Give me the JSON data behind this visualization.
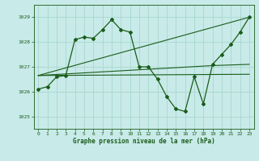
{
  "background_color": "#c8eae8",
  "grid_color": "#a8d8d0",
  "line_color": "#1a5c1a",
  "title": "Graphe pression niveau de la mer (hPa)",
  "xlim": [
    -0.5,
    23.5
  ],
  "ylim": [
    1024.5,
    1029.5
  ],
  "yticks": [
    1025,
    1026,
    1027,
    1028,
    1029
  ],
  "xticks": [
    0,
    1,
    2,
    3,
    4,
    5,
    6,
    7,
    8,
    9,
    10,
    11,
    12,
    13,
    14,
    15,
    16,
    17,
    18,
    19,
    20,
    21,
    22,
    23
  ],
  "series1_x": [
    0,
    1,
    2,
    3,
    4,
    5,
    6,
    7,
    8,
    9,
    10,
    11,
    12,
    13,
    14,
    15,
    16,
    17,
    18,
    19,
    20,
    21,
    22,
    23
  ],
  "series1_y": [
    1026.1,
    1026.2,
    1026.6,
    1026.65,
    1028.1,
    1028.2,
    1028.15,
    1028.5,
    1028.9,
    1028.5,
    1028.4,
    1027.0,
    1027.0,
    1026.5,
    1025.8,
    1025.3,
    1025.2,
    1026.6,
    1025.5,
    1027.1,
    1027.5,
    1027.9,
    1028.4,
    1029.0
  ],
  "line2_x": [
    0,
    23
  ],
  "line2_y": [
    1026.65,
    1029.0
  ],
  "line3_x": [
    0,
    19,
    23
  ],
  "line3_y": [
    1026.65,
    1027.05,
    1027.1
  ],
  "line4_x": [
    0,
    23
  ],
  "line4_y": [
    1026.65,
    1026.7
  ]
}
